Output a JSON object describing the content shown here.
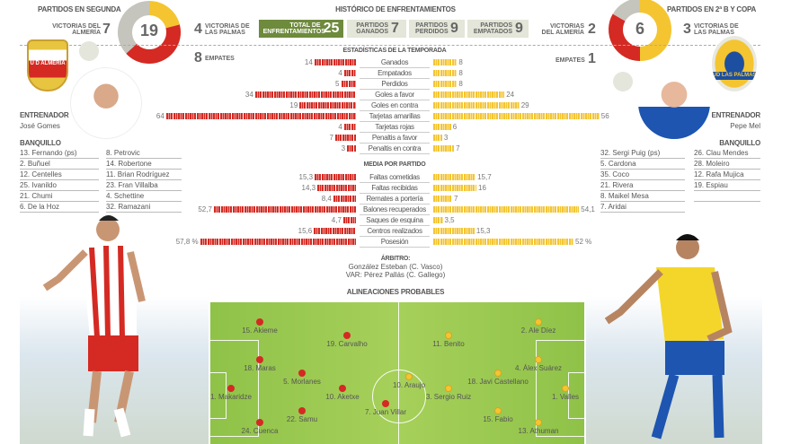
{
  "colors": {
    "almeria": "#d42a23",
    "laspalmas": "#f4c531",
    "draw": "#c5c5bd",
    "accent": "#6e8a3c"
  },
  "left": {
    "title": "PARTIDOS EN SEGUNDA",
    "total": "19",
    "wins_label": "VICTORIAS DEL ALMERÍA",
    "wins": "7",
    "opp_wins": "4",
    "opp_wins_label": "VICTORIAS DE LAS PALMAS",
    "draws": "8",
    "draws_label": "EMPATES"
  },
  "right": {
    "title": "PARTIDOS EN 2ª B Y COPA",
    "total": "6",
    "wins_label": "VICTORIAS DEL ALMERÍA",
    "wins": "2",
    "opp_wins": "3",
    "opp_wins_label": "VICTORIAS DE LAS PALMAS",
    "draws": "1",
    "draws_label": "EMPATES"
  },
  "history": {
    "title": "HISTÓRICO DE ENFRENTAMIENTOS",
    "boxes": [
      {
        "label": "TOTAL DE ENFRENTAMIENTOS",
        "value": "25"
      },
      {
        "label": "PARTIDOS GANADOS",
        "value": "7"
      },
      {
        "label": "PARTIDOS PERDIDOS",
        "value": "9"
      },
      {
        "label": "PARTIDOS EMPATADOS",
        "value": "9"
      }
    ]
  },
  "season": {
    "title": "ESTADÍSTICAS DE LA TEMPORADA",
    "rows": [
      {
        "label": "Ganados",
        "left": "14",
        "right": "8"
      },
      {
        "label": "Empatados",
        "left": "4",
        "right": "8"
      },
      {
        "label": "Perdidos",
        "left": "5",
        "right": "8"
      },
      {
        "label": "Goles a favor",
        "left": "34",
        "right": "24"
      },
      {
        "label": "Goles en contra",
        "left": "19",
        "right": "29"
      },
      {
        "label": "Tarjetas amarillas",
        "left": "64",
        "right": "56"
      },
      {
        "label": "Tarjetas rojas",
        "left": "4",
        "right": "6"
      },
      {
        "label": "Penaltis a favor",
        "left": "7",
        "right": "3"
      },
      {
        "label": "Penaltis en contra",
        "left": "3",
        "right": "7"
      }
    ]
  },
  "average": {
    "title": "MEDIA POR PARTIDO",
    "rows": [
      {
        "label": "Faltas cometidas",
        "left": "15,3",
        "right": "15,7"
      },
      {
        "label": "Faltas recibidas",
        "left": "14,3",
        "right": "16"
      },
      {
        "label": "Remates a portería",
        "left": "8,4",
        "right": "7"
      },
      {
        "label": "Balones recuperados",
        "left": "52,7",
        "right": "54,1"
      },
      {
        "label": "Saques de esquina",
        "left": "4,7",
        "right": "3,5"
      },
      {
        "label": "Centros realizados",
        "left": "15,6",
        "right": "15,3"
      },
      {
        "label": "Posesión",
        "left": "57,8 %",
        "right": "52 %"
      }
    ]
  },
  "referee": {
    "title": "ÁRBITRO:",
    "main": "González Esteban (C. Vasco)",
    "var": "VAR: Pérez Pallás (C. Gallego)"
  },
  "almeria": {
    "logo_text": "U D ALMERÍA",
    "coach_label": "ENTRENADOR",
    "coach": "José Gomes",
    "bench_label": "BANQUILLO",
    "bench1": [
      "13. Fernando (ps)",
      "2. Buñuel",
      "12. Centelles",
      "25. Ivanildo",
      "21. Chumi",
      "6. De la Hoz"
    ],
    "bench2": [
      "8. Petrovic",
      "14. Robertone",
      "11. Brian Rodríguez",
      "23. Fran Villalba",
      "4. Schettine",
      "32. Ramazani"
    ]
  },
  "laspalmas": {
    "logo_text": "UD LAS PALMAS",
    "coach_label": "ENTRENADOR",
    "coach": "Pepe Mel",
    "bench_label": "BANQUILLO",
    "bench1": [
      "32. Sergi Puig (ps)",
      "5. Cardona",
      "35. Coco",
      "21. Rivera",
      "8. Maikel Mesa",
      "7. Aridai"
    ],
    "bench2": [
      "26. Clau Mendes",
      "28. Moleiro",
      "12. Rafa Mujica",
      "19. Espiau",
      ""
    ]
  },
  "lineups": {
    "title": "ALINEACIONES PROBABLES",
    "home": [
      "15. Akieme",
      "19. Carvalho",
      "18. Maras",
      "5. Morlanes",
      "10. Aketxe",
      "1. Makaridze",
      "22. Samu",
      "24. Cuenca",
      "7. Juan Villar"
    ],
    "away": [
      "10. Araujo",
      "11. Benito",
      "3. Sergio Ruiz",
      "2. Ale Díez",
      "4. Álex Suárez",
      "18. Javi Castellano",
      "15. Fabio",
      "13. Athuman",
      "1. Valles"
    ]
  }
}
